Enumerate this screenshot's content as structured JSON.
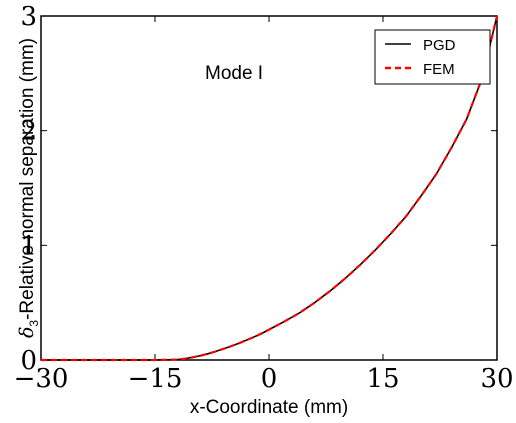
{
  "chart_data": {
    "type": "line",
    "title": "",
    "xlabel": "x-Coordinate (mm)",
    "ylabel_symbol": "δ",
    "ylabel_subscript": "3",
    "ylabel_text": "-Relative normal separation (mm)",
    "xlim": [
      -30,
      30
    ],
    "ylim": [
      0,
      3
    ],
    "x_ticks": [
      -30,
      -15,
      0,
      15,
      30
    ],
    "x_tick_labels": [
      "−30",
      "−15",
      "0",
      "15",
      "30"
    ],
    "y_ticks": [
      0,
      1,
      2,
      3
    ],
    "y_tick_labels": [
      "0",
      "1",
      "2",
      "3"
    ],
    "annotation": "Mode I",
    "legend_position": "top-right",
    "grid": false,
    "series": [
      {
        "name": "PGD",
        "color": "#000000",
        "style": "solid",
        "x": [
          -30,
          -20,
          -15,
          -12,
          -11,
          -10,
          -9,
          -8,
          -7,
          -6,
          -5,
          -4,
          -3,
          -2,
          -1,
          0,
          2,
          4,
          6,
          8,
          10,
          12,
          14,
          16,
          18,
          20,
          22,
          24,
          26,
          28,
          30
        ],
        "y": [
          0,
          0,
          0,
          0.004,
          0.012,
          0.024,
          0.038,
          0.055,
          0.075,
          0.097,
          0.12,
          0.145,
          0.172,
          0.2,
          0.23,
          0.265,
          0.335,
          0.41,
          0.5,
          0.6,
          0.71,
          0.83,
          0.96,
          1.1,
          1.25,
          1.43,
          1.62,
          1.85,
          2.1,
          2.45,
          3.0
        ]
      },
      {
        "name": "FEM",
        "color": "#ff0000",
        "style": "dashed",
        "x": [
          -30,
          -20,
          -15,
          -12,
          -11,
          -10,
          -9,
          -8,
          -7,
          -6,
          -5,
          -4,
          -3,
          -2,
          -1,
          0,
          2,
          4,
          6,
          8,
          10,
          12,
          14,
          16,
          18,
          20,
          22,
          24,
          26,
          28,
          30
        ],
        "y": [
          0,
          0,
          0,
          0.004,
          0.012,
          0.024,
          0.038,
          0.055,
          0.075,
          0.097,
          0.12,
          0.145,
          0.172,
          0.2,
          0.23,
          0.265,
          0.335,
          0.41,
          0.5,
          0.6,
          0.71,
          0.83,
          0.96,
          1.1,
          1.25,
          1.43,
          1.62,
          1.85,
          2.1,
          2.45,
          3.0
        ]
      }
    ]
  }
}
